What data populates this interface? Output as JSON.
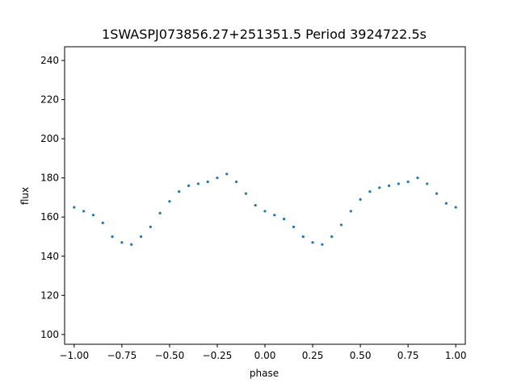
{
  "chart_data": {
    "type": "scatter",
    "title": "1SWASPJ073856.27+251351.5 Period 3924722.5s",
    "xlabel": "phase",
    "ylabel": "flux",
    "xlim": [
      -1.05,
      1.05
    ],
    "ylim": [
      95,
      247
    ],
    "x_ticks": [
      -1.0,
      -0.75,
      -0.5,
      -0.25,
      0.0,
      0.25,
      0.5,
      0.75,
      1.0
    ],
    "x_tick_labels": [
      "−1.00",
      "−0.75",
      "−0.50",
      "−0.25",
      "0.00",
      "0.25",
      "0.50",
      "0.75",
      "1.00"
    ],
    "y_ticks": [
      100,
      120,
      140,
      160,
      180,
      200,
      220,
      240
    ],
    "y_tick_labels": [
      "100",
      "120",
      "140",
      "160",
      "180",
      "200",
      "220",
      "240"
    ],
    "grid": false,
    "series": [
      {
        "color": "#1f77b4",
        "x": [
          -1.0,
          -0.95,
          -0.9,
          -0.85,
          -0.8,
          -0.75,
          -0.7,
          -0.65,
          -0.6,
          -0.55,
          -0.5,
          -0.45,
          -0.4,
          -0.35,
          -0.3,
          -0.25,
          -0.2,
          -0.15,
          -0.1,
          -0.05,
          0.0,
          0.05,
          0.1,
          0.15,
          0.2,
          0.25,
          0.3,
          0.35,
          0.4,
          0.45,
          0.5,
          0.55,
          0.6,
          0.65,
          0.7,
          0.75,
          0.8,
          0.85,
          0.9,
          0.95,
          1.0
        ],
        "y": [
          165,
          163,
          161,
          157,
          150,
          147,
          146,
          150,
          155,
          162,
          168,
          173,
          176,
          177,
          178,
          180,
          182,
          178,
          172,
          166,
          163,
          161,
          159,
          155,
          150,
          147,
          146,
          150,
          156,
          163,
          169,
          173,
          175,
          176,
          177,
          178,
          180,
          177,
          172,
          167,
          165
        ]
      }
    ]
  }
}
